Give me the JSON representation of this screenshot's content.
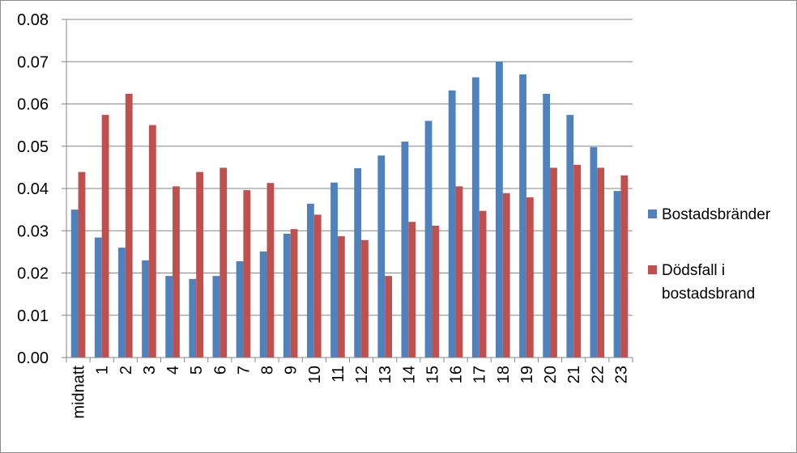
{
  "chart_data": {
    "type": "bar",
    "categories": [
      "midnatt",
      "1",
      "2",
      "3",
      "4",
      "5",
      "6",
      "7",
      "8",
      "9",
      "10",
      "11",
      "12",
      "13",
      "14",
      "15",
      "16",
      "17",
      "18",
      "19",
      "20",
      "21",
      "22",
      "23"
    ],
    "series": [
      {
        "name": "Bostadsbränder",
        "color": "#4f81bd",
        "values": [
          0.035,
          0.0284,
          0.026,
          0.023,
          0.0193,
          0.0186,
          0.0193,
          0.0228,
          0.0251,
          0.0293,
          0.0364,
          0.0414,
          0.0448,
          0.0478,
          0.0511,
          0.056,
          0.0632,
          0.0663,
          0.07,
          0.067,
          0.0624,
          0.0574,
          0.0498,
          0.0394
        ]
      },
      {
        "name": "Dödsfall i bostadsbrand",
        "legend_lines": [
          "Dödsfall i",
          "bostadsbrand"
        ],
        "color": "#c0504d",
        "values": [
          0.0439,
          0.0574,
          0.0624,
          0.055,
          0.0405,
          0.0439,
          0.0449,
          0.0396,
          0.0413,
          0.0304,
          0.0338,
          0.0287,
          0.0278,
          0.0193,
          0.0321,
          0.0312,
          0.0405,
          0.0347,
          0.0389,
          0.0379,
          0.0449,
          0.0456,
          0.0449,
          0.0431
        ]
      }
    ],
    "yticks": [
      "0.00",
      "0.01",
      "0.02",
      "0.03",
      "0.04",
      "0.05",
      "0.06",
      "0.07",
      "0.08"
    ],
    "ylim": [
      0,
      0.08
    ],
    "grid": true,
    "legend_position": "right"
  }
}
